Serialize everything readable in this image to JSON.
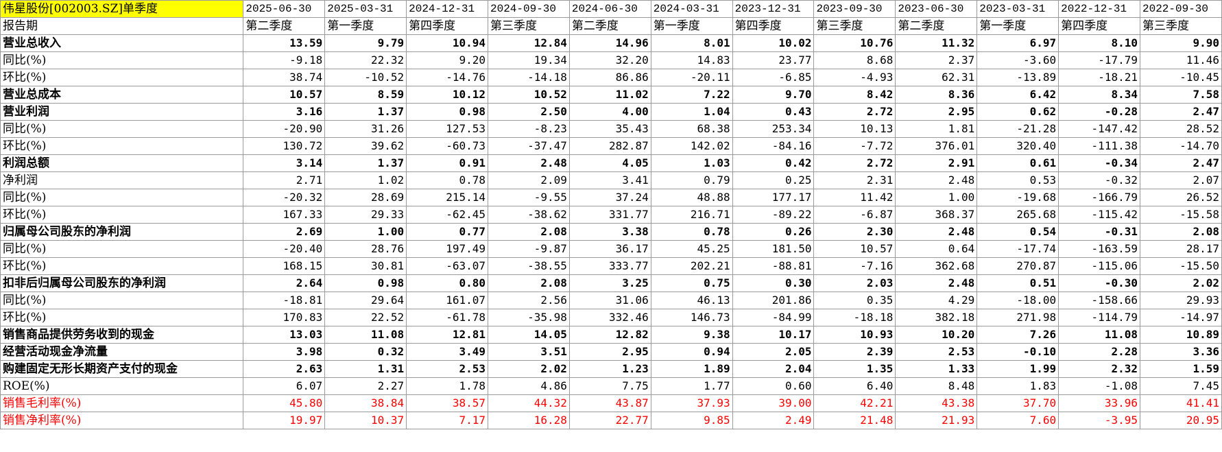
{
  "title": "伟星股份[002003.SZ]单季度",
  "dates": [
    "2025-06-30",
    "2025-03-31",
    "2024-12-31",
    "2024-09-30",
    "2024-06-30",
    "2024-03-31",
    "2023-12-31",
    "2023-09-30",
    "2023-06-30",
    "2023-03-31",
    "2022-12-31",
    "2022-09-30"
  ],
  "period_label": "报告期",
  "periods": [
    "第二季度",
    "第一季度",
    "第四季度",
    "第三季度",
    "第二季度",
    "第一季度",
    "第四季度",
    "第三季度",
    "第二季度",
    "第一季度",
    "第四季度",
    "第三季度"
  ],
  "rows": [
    {
      "label": "营业总收入",
      "style": "bold",
      "values": [
        "13.59",
        "9.79",
        "10.94",
        "12.84",
        "14.96",
        "8.01",
        "10.02",
        "10.76",
        "11.32",
        "6.97",
        "8.10",
        "9.90"
      ]
    },
    {
      "label": "同比(%)",
      "style": "normal",
      "values": [
        "-9.18",
        "22.32",
        "9.20",
        "19.34",
        "32.20",
        "14.83",
        "23.77",
        "8.68",
        "2.37",
        "-3.60",
        "-17.79",
        "11.46"
      ]
    },
    {
      "label": "环比(%)",
      "style": "normal",
      "values": [
        "38.74",
        "-10.52",
        "-14.76",
        "-14.18",
        "86.86",
        "-20.11",
        "-6.85",
        "-4.93",
        "62.31",
        "-13.89",
        "-18.21",
        "-10.45"
      ]
    },
    {
      "label": "营业总成本",
      "style": "bold",
      "values": [
        "10.57",
        "8.59",
        "10.12",
        "10.52",
        "11.02",
        "7.22",
        "9.70",
        "8.42",
        "8.36",
        "6.42",
        "8.34",
        "7.58"
      ]
    },
    {
      "label": "营业利润",
      "style": "bold",
      "values": [
        "3.16",
        "1.37",
        "0.98",
        "2.50",
        "4.00",
        "1.04",
        "0.43",
        "2.72",
        "2.95",
        "0.62",
        "-0.28",
        "2.47"
      ]
    },
    {
      "label": "同比(%)",
      "style": "normal",
      "values": [
        "-20.90",
        "31.26",
        "127.53",
        "-8.23",
        "35.43",
        "68.38",
        "253.34",
        "10.13",
        "1.81",
        "-21.28",
        "-147.42",
        "28.52"
      ]
    },
    {
      "label": "环比(%)",
      "style": "normal",
      "values": [
        "130.72",
        "39.62",
        "-60.73",
        "-37.47",
        "282.87",
        "142.02",
        "-84.16",
        "-7.72",
        "376.01",
        "320.40",
        "-111.38",
        "-14.70"
      ]
    },
    {
      "label": "利润总额",
      "style": "bold",
      "values": [
        "3.14",
        "1.37",
        "0.91",
        "2.48",
        "4.05",
        "1.03",
        "0.42",
        "2.72",
        "2.91",
        "0.61",
        "-0.34",
        "2.47"
      ]
    },
    {
      "label": "净利润",
      "style": "normal",
      "values": [
        "2.71",
        "1.02",
        "0.78",
        "2.09",
        "3.41",
        "0.79",
        "0.25",
        "2.31",
        "2.48",
        "0.53",
        "-0.32",
        "2.07"
      ]
    },
    {
      "label": "同比(%)",
      "style": "normal",
      "values": [
        "-20.32",
        "28.69",
        "215.14",
        "-9.55",
        "37.24",
        "48.88",
        "177.17",
        "11.42",
        "1.00",
        "-19.68",
        "-166.79",
        "26.52"
      ]
    },
    {
      "label": "环比(%)",
      "style": "normal",
      "values": [
        "167.33",
        "29.33",
        "-62.45",
        "-38.62",
        "331.77",
        "216.71",
        "-89.22",
        "-6.87",
        "368.37",
        "265.68",
        "-115.42",
        "-15.58"
      ]
    },
    {
      "label": "归属母公司股东的净利润",
      "style": "bold",
      "values": [
        "2.69",
        "1.00",
        "0.77",
        "2.08",
        "3.38",
        "0.78",
        "0.26",
        "2.30",
        "2.48",
        "0.54",
        "-0.31",
        "2.08"
      ]
    },
    {
      "label": "同比(%)",
      "style": "normal",
      "values": [
        "-20.40",
        "28.76",
        "197.49",
        "-9.87",
        "36.17",
        "45.25",
        "181.50",
        "10.57",
        "0.64",
        "-17.74",
        "-163.59",
        "28.17"
      ]
    },
    {
      "label": "环比(%)",
      "style": "normal",
      "values": [
        "168.15",
        "30.81",
        "-63.07",
        "-38.55",
        "333.77",
        "202.21",
        "-88.81",
        "-7.16",
        "362.68",
        "270.87",
        "-115.06",
        "-15.50"
      ]
    },
    {
      "label": "扣非后归属母公司股东的净利润",
      "style": "bold",
      "values": [
        "2.64",
        "0.98",
        "0.80",
        "2.08",
        "3.25",
        "0.75",
        "0.30",
        "2.03",
        "2.48",
        "0.51",
        "-0.30",
        "2.02"
      ]
    },
    {
      "label": "同比(%)",
      "style": "normal",
      "values": [
        "-18.81",
        "29.64",
        "161.07",
        "2.56",
        "31.06",
        "46.13",
        "201.86",
        "0.35",
        "4.29",
        "-18.00",
        "-158.66",
        "29.93"
      ]
    },
    {
      "label": "环比(%)",
      "style": "normal",
      "values": [
        "170.83",
        "22.52",
        "-61.78",
        "-35.98",
        "332.46",
        "146.73",
        "-84.99",
        "-18.18",
        "382.18",
        "271.98",
        "-114.79",
        "-14.97"
      ]
    },
    {
      "label": "销售商品提供劳务收到的现金",
      "style": "bold",
      "values": [
        "13.03",
        "11.08",
        "12.81",
        "14.05",
        "12.82",
        "9.38",
        "10.17",
        "10.93",
        "10.20",
        "7.26",
        "11.08",
        "10.89"
      ]
    },
    {
      "label": "经营活动现金净流量",
      "style": "bold",
      "values": [
        "3.98",
        "0.32",
        "3.49",
        "3.51",
        "2.95",
        "0.94",
        "2.05",
        "2.39",
        "2.53",
        "-0.10",
        "2.28",
        "3.36"
      ]
    },
    {
      "label": "购建固定无形长期资产支付的现金",
      "style": "bold",
      "values": [
        "2.63",
        "1.31",
        "2.53",
        "2.02",
        "1.23",
        "1.89",
        "2.04",
        "1.35",
        "1.33",
        "1.99",
        "2.32",
        "1.59"
      ]
    },
    {
      "label": "ROE(%)",
      "style": "normal",
      "values": [
        "6.07",
        "2.27",
        "1.78",
        "4.86",
        "7.75",
        "1.77",
        "0.60",
        "6.40",
        "8.48",
        "1.83",
        "-1.08",
        "7.45"
      ]
    },
    {
      "label": "销售毛利率(%)",
      "style": "red",
      "values": [
        "45.80",
        "38.84",
        "38.57",
        "44.32",
        "43.87",
        "37.93",
        "39.00",
        "42.21",
        "43.38",
        "37.70",
        "33.96",
        "41.41"
      ]
    },
    {
      "label": "销售净利率(%)",
      "style": "red",
      "values": [
        "19.97",
        "10.37",
        "7.17",
        "16.28",
        "22.77",
        "9.85",
        "2.49",
        "21.48",
        "21.93",
        "7.60",
        "-3.95",
        "20.95"
      ]
    }
  ]
}
